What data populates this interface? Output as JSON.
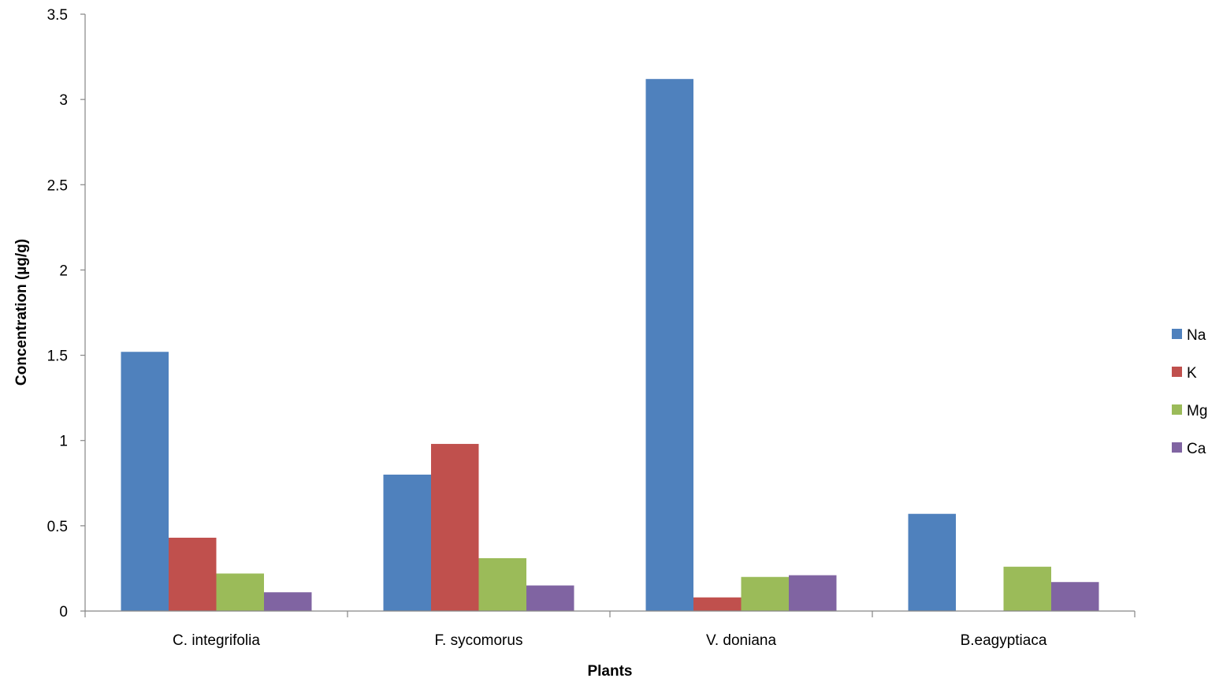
{
  "chart_data": {
    "type": "bar",
    "title": "",
    "xlabel": "Plants",
    "ylabel": "Concentration (µg/g)",
    "categories": [
      "C. integrifolia",
      "F. sycomorus",
      "V. doniana",
      "B.eagyptiaca"
    ],
    "series": [
      {
        "name": "Na",
        "color": "#4F81BD",
        "values": [
          1.52,
          0.8,
          3.12,
          0.57
        ]
      },
      {
        "name": "K",
        "color": "#C0504D",
        "values": [
          0.43,
          0.98,
          0.08,
          0.0
        ]
      },
      {
        "name": "Mg",
        "color": "#9BBB59",
        "values": [
          0.22,
          0.31,
          0.2,
          0.26
        ]
      },
      {
        "name": "Ca",
        "color": "#8064A2",
        "values": [
          0.11,
          0.15,
          0.21,
          0.17
        ]
      }
    ],
    "ylim": [
      0,
      3.5
    ],
    "yticks": [
      "0",
      "0.5",
      "1",
      "1.5",
      "2",
      "2.5",
      "3",
      "3.5"
    ],
    "grid": false,
    "legend_position": "right"
  }
}
